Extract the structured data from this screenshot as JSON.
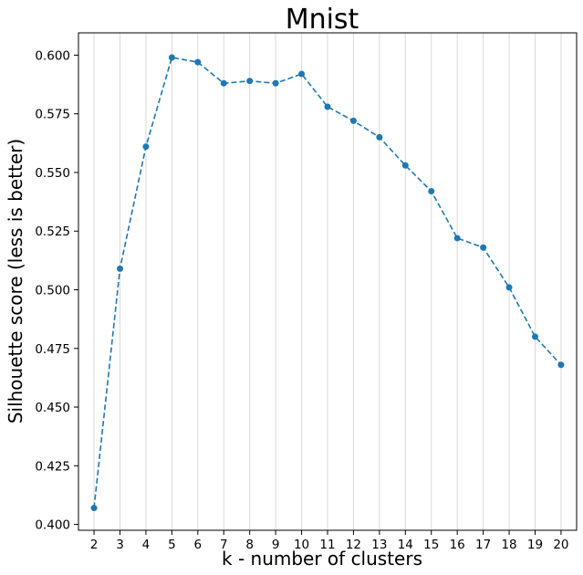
{
  "chart_data": {
    "type": "line",
    "title": "Mnist",
    "xlabel": "k - number of clusters",
    "ylabel": "Silhouette score (less is better)",
    "x": [
      2,
      3,
      4,
      5,
      6,
      7,
      8,
      9,
      10,
      11,
      12,
      13,
      14,
      15,
      16,
      17,
      18,
      19,
      20
    ],
    "series": [
      {
        "values": [
          0.407,
          0.509,
          0.561,
          0.599,
          0.597,
          0.588,
          0.589,
          0.588,
          0.592,
          0.578,
          0.572,
          0.565,
          0.553,
          0.542,
          0.522,
          0.518,
          0.501,
          0.48,
          0.468
        ],
        "color": "#1f77b4",
        "line_style": "dashed",
        "marker": "circle"
      }
    ],
    "xlim": [
      1.4,
      20.6
    ],
    "ylim": [
      0.3975,
      0.6095
    ],
    "x_ticks": [
      "2",
      "3",
      "4",
      "5",
      "6",
      "7",
      "8",
      "9",
      "10",
      "11",
      "12",
      "13",
      "14",
      "15",
      "16",
      "17",
      "18",
      "19",
      "20"
    ],
    "y_ticks": [
      0.4,
      0.425,
      0.45,
      0.475,
      0.5,
      0.525,
      0.55,
      0.575,
      0.6
    ],
    "y_tick_labels": [
      "0.400",
      "0.425",
      "0.450",
      "0.475",
      "0.500",
      "0.525",
      "0.550",
      "0.575",
      "0.600"
    ],
    "grid": "vertical"
  }
}
